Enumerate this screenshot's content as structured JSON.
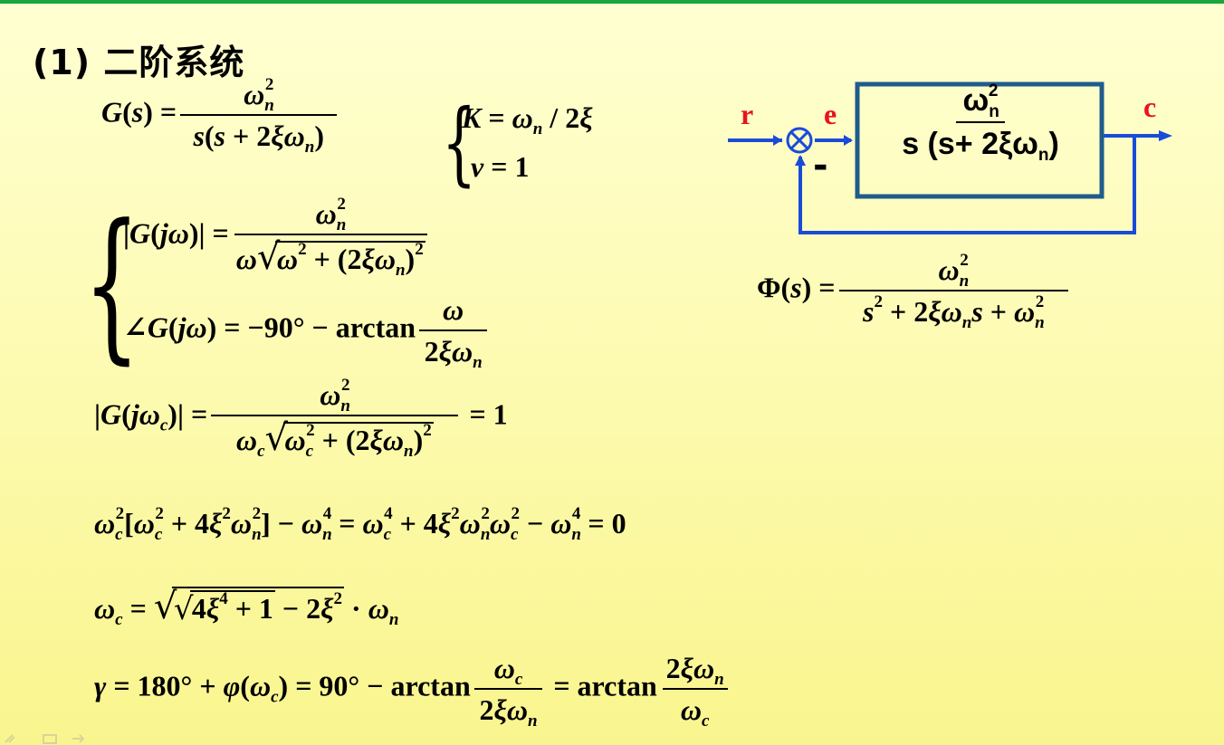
{
  "title": "(1) 二阶系统",
  "diagram": {
    "input_label": "r",
    "error_label": "e",
    "output_label": "c",
    "minus_sign": "-",
    "block_numerator": "ωn²",
    "block_denominator": "s(s+2ξωn)",
    "colors": {
      "signal": "#1a4bd8",
      "labels": "#e8141e",
      "block_border": "#1f5c8c"
    }
  }
}
